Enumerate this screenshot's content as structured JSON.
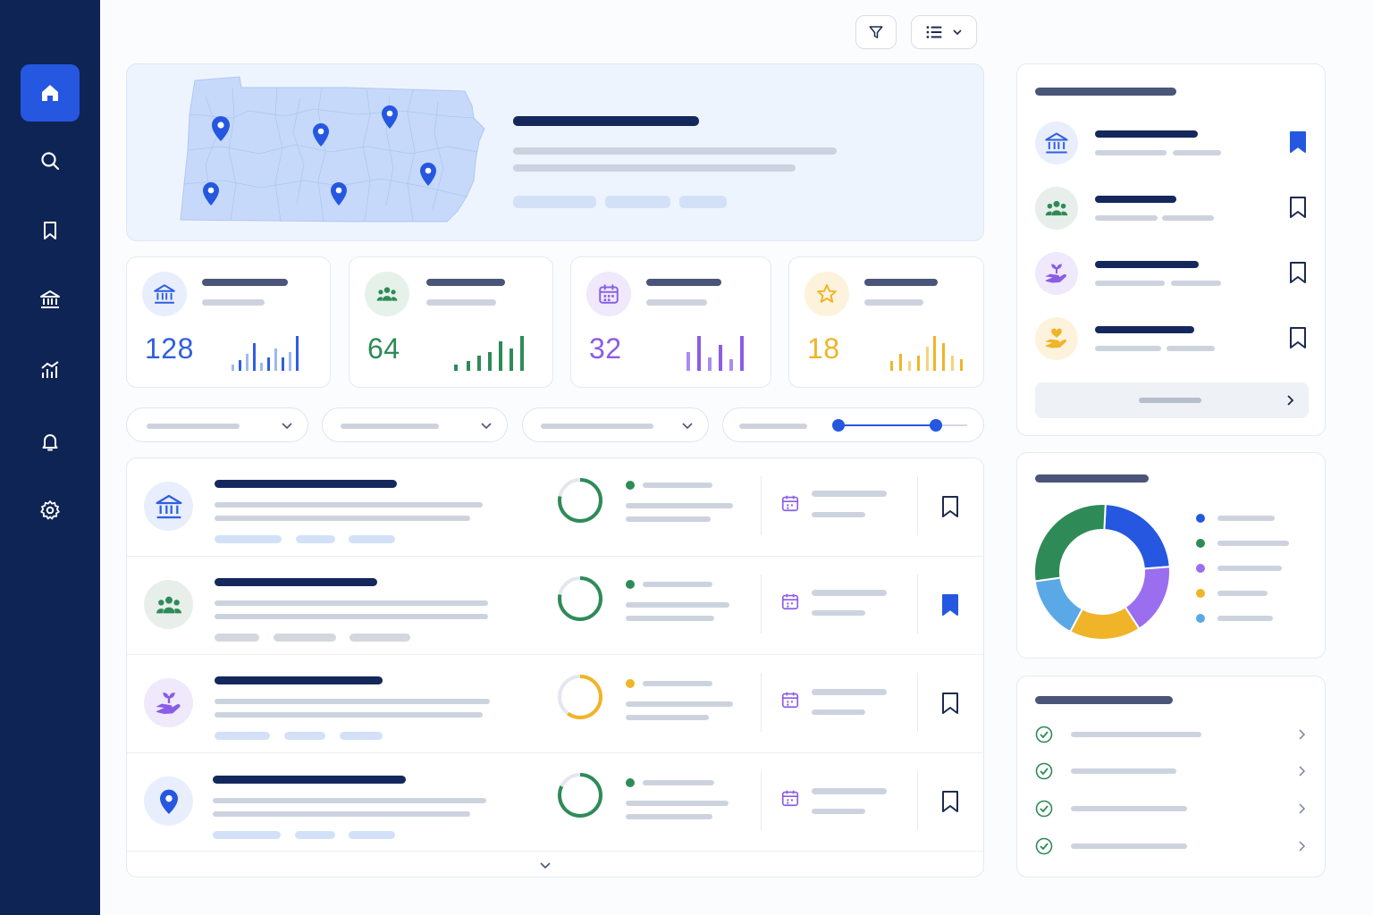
{
  "icons": {
    "sidebar": [
      "home-icon",
      "search-icon",
      "bookmark-icon",
      "bank-icon",
      "analytics-icon",
      "bell-icon",
      "gear-icon"
    ],
    "toolbar": [
      "filter-icon",
      "list-view-icon",
      "chevron-down-icon"
    ]
  },
  "colors": {
    "sidebar": "#0e2454",
    "accent": "#2557e0",
    "blue": "#2f5fe0",
    "green": "#2e8b57",
    "purple": "#8b5ce6",
    "yellow": "#f0b429",
    "lightblue": "#5aa9e6"
  },
  "stats": [
    {
      "value": "128",
      "icon": "bank-icon",
      "color": "#2f5fe0"
    },
    {
      "value": "64",
      "icon": "people-icon",
      "color": "#2e8b57"
    },
    {
      "value": "32",
      "icon": "calendar-icon",
      "color": "#8b5ce6"
    },
    {
      "value": "18",
      "icon": "star-icon",
      "color": "#f0b429"
    }
  ],
  "list": {
    "rows": [
      {
        "icon": "bank-icon",
        "progress": 0.78,
        "status_color": "#2e8b57",
        "bookmarked": false
      },
      {
        "icon": "people-icon",
        "progress": 0.78,
        "status_color": "#2e8b57",
        "bookmarked": true
      },
      {
        "icon": "plant-hand-icon",
        "progress": 0.6,
        "status_color": "#f0b429",
        "bookmarked": false
      },
      {
        "icon": "location-pin-icon",
        "progress": 0.82,
        "status_color": "#2e8b57",
        "bookmarked": false
      }
    ]
  },
  "saved_panel": {
    "items": [
      {
        "icon": "bank-icon",
        "bookmarked": true
      },
      {
        "icon": "people-icon",
        "bookmarked": false
      },
      {
        "icon": "plant-hand-icon",
        "bookmarked": false
      },
      {
        "icon": "heart-hand-icon",
        "bookmarked": false
      }
    ]
  },
  "donut": {
    "segments": [
      {
        "color": "#2557e0",
        "fraction": 0.23
      },
      {
        "color": "#9b6ef0",
        "fraction": 0.17
      },
      {
        "color": "#f0b429",
        "fraction": 0.17
      },
      {
        "color": "#5aa9e6",
        "fraction": 0.15
      },
      {
        "color": "#2e8b57",
        "fraction": 0.28
      }
    ]
  },
  "checklist": {
    "count": 4
  }
}
